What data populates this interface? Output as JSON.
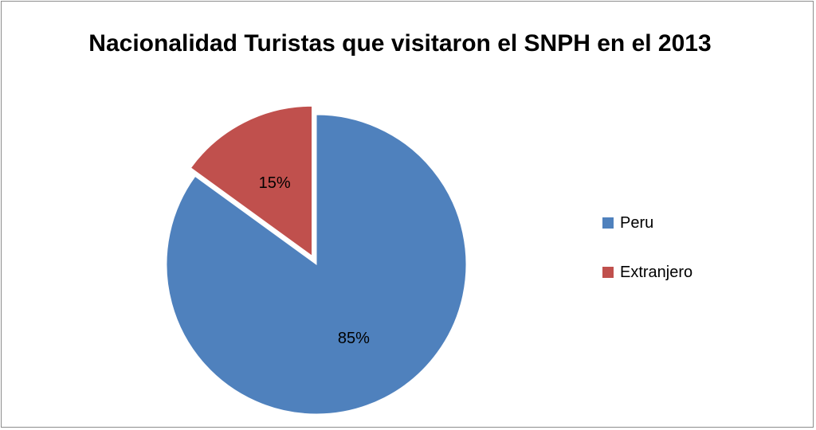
{
  "chart_data": {
    "type": "pie",
    "title": "Nacionalidad Turistas que visitaron el SNPH en el 2013",
    "categories": [
      "Peru",
      "Extranjero"
    ],
    "values": [
      85,
      15
    ],
    "labels": [
      "85%",
      "15%"
    ],
    "colors": [
      "#4f81bd",
      "#c0504d"
    ],
    "exploded": [
      false,
      true
    ],
    "legend_position": "right"
  }
}
